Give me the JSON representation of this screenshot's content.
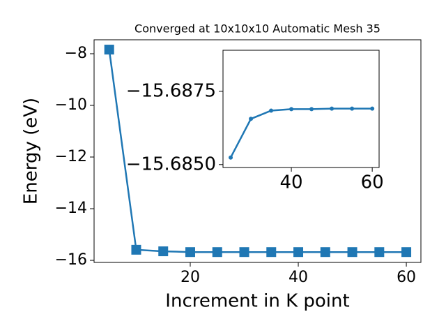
{
  "chart_data": [
    {
      "type": "line",
      "title": "Converged at 10x10x10 Automatic Mesh 35",
      "x_label": "Increment in K point",
      "y_label": "Energy (eV)",
      "x": [
        5,
        10,
        15,
        20,
        25,
        30,
        35,
        40,
        45,
        50,
        55,
        60
      ],
      "series": [
        {
          "color": "#1f77b4",
          "marker": "square",
          "values": [
            -7.84,
            -15.59,
            -15.65,
            -15.68,
            -15.68,
            -15.68,
            -15.68,
            -15.68,
            -15.68,
            -15.68,
            -15.68,
            -15.68
          ]
        }
      ],
      "xlim": [
        2.2,
        62.7
      ],
      "ylim": [
        -16.08,
        -7.46
      ],
      "xticks": [
        20,
        40,
        60
      ],
      "yticks": [
        {
          "value": -16,
          "label": "−16"
        },
        {
          "value": -14,
          "label": "−14"
        },
        {
          "value": -12,
          "label": "−12"
        },
        {
          "value": -10,
          "label": "−10"
        },
        {
          "value": -8,
          "label": "−8"
        }
      ]
    },
    {
      "type": "line",
      "x": [
        25,
        30,
        35,
        40,
        45,
        50,
        55,
        60
      ],
      "series": [
        {
          "color": "#1f77b4",
          "marker": "circle",
          "values": [
            -15.68524,
            -15.68656,
            -15.68684,
            -15.68689,
            -15.68689,
            -15.68691,
            -15.68691,
            -15.68691
          ]
        }
      ],
      "xlim": [
        23.1,
        61.7
      ],
      "ylim": [
        -15.6849,
        -15.6889
      ],
      "xticks": [
        40,
        60
      ],
      "yticks": [
        {
          "value": -15.685,
          "label": "−15.6850"
        },
        {
          "value": -15.6875,
          "label": "−15.6875"
        }
      ]
    }
  ]
}
